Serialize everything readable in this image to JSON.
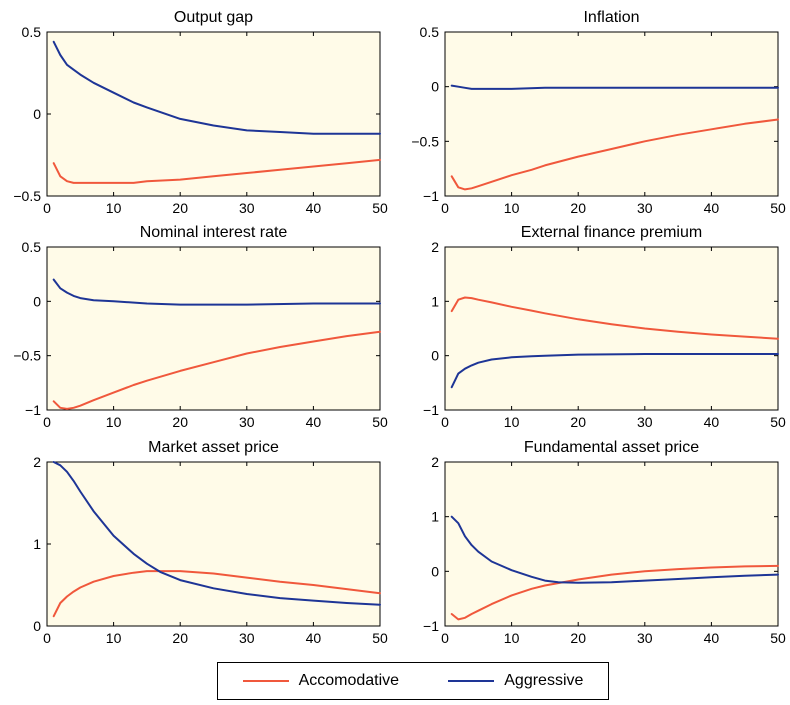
{
  "colors": {
    "accomodative": "#f0583c",
    "aggressive": "#1e3596",
    "axes_background": "#fffbe8"
  },
  "legend": {
    "placement": "bottom-center",
    "items": [
      {
        "label": "Accomodative",
        "color": "#f0583c"
      },
      {
        "label": "Aggressive",
        "color": "#1e3596"
      }
    ]
  },
  "chart_data": [
    {
      "type": "line",
      "title": "Output gap",
      "xlabel": "",
      "ylabel": "",
      "xlim": [
        0,
        50
      ],
      "ylim": [
        -0.5,
        0.5
      ],
      "xticks": [
        0,
        10,
        20,
        30,
        40,
        50
      ],
      "xtick_labels": [
        "0",
        "10",
        "20",
        "30",
        "40",
        "50"
      ],
      "yticks": [
        -0.5,
        0,
        0.5
      ],
      "ytick_labels": [
        "−0.5",
        "0",
        "0.5"
      ],
      "series": [
        {
          "name": "Accomodative",
          "x": [
            1,
            2,
            3,
            4,
            5,
            7,
            10,
            13,
            15,
            20,
            25,
            30,
            35,
            40,
            45,
            50
          ],
          "y": [
            -0.3,
            -0.38,
            -0.41,
            -0.42,
            -0.42,
            -0.42,
            -0.42,
            -0.42,
            -0.41,
            -0.4,
            -0.38,
            -0.36,
            -0.34,
            -0.32,
            -0.3,
            -0.28
          ]
        },
        {
          "name": "Aggressive",
          "x": [
            1,
            2,
            3,
            4,
            5,
            7,
            10,
            13,
            15,
            20,
            25,
            30,
            35,
            40,
            45,
            50
          ],
          "y": [
            0.44,
            0.36,
            0.3,
            0.27,
            0.24,
            0.19,
            0.13,
            0.07,
            0.04,
            -0.03,
            -0.07,
            -0.1,
            -0.11,
            -0.12,
            -0.12,
            -0.12
          ]
        }
      ]
    },
    {
      "type": "line",
      "title": "Inflation",
      "xlabel": "",
      "ylabel": "",
      "xlim": [
        0,
        50
      ],
      "ylim": [
        -1,
        0.5
      ],
      "xticks": [
        0,
        10,
        20,
        30,
        40,
        50
      ],
      "xtick_labels": [
        "0",
        "10",
        "20",
        "30",
        "40",
        "50"
      ],
      "yticks": [
        -1,
        -0.5,
        0,
        0.5
      ],
      "ytick_labels": [
        "−1",
        "−0.5",
        "0",
        "0.5"
      ],
      "series": [
        {
          "name": "Accomodative",
          "x": [
            1,
            2,
            3,
            4,
            5,
            7,
            10,
            13,
            15,
            20,
            25,
            30,
            35,
            40,
            45,
            50
          ],
          "y": [
            -0.82,
            -0.92,
            -0.94,
            -0.93,
            -0.91,
            -0.87,
            -0.81,
            -0.76,
            -0.72,
            -0.64,
            -0.57,
            -0.5,
            -0.44,
            -0.39,
            -0.34,
            -0.3
          ]
        },
        {
          "name": "Aggressive",
          "x": [
            1,
            2,
            3,
            4,
            5,
            10,
            15,
            20,
            30,
            40,
            50
          ],
          "y": [
            0.01,
            0.0,
            -0.01,
            -0.02,
            -0.02,
            -0.02,
            -0.01,
            -0.01,
            -0.01,
            -0.01,
            -0.01
          ]
        }
      ]
    },
    {
      "type": "line",
      "title": "Nominal interest rate",
      "xlabel": "",
      "ylabel": "",
      "xlim": [
        0,
        50
      ],
      "ylim": [
        -1,
        0.5
      ],
      "xticks": [
        0,
        10,
        20,
        30,
        40,
        50
      ],
      "xtick_labels": [
        "0",
        "10",
        "20",
        "30",
        "40",
        "50"
      ],
      "yticks": [
        -1,
        -0.5,
        0,
        0.5
      ],
      "ytick_labels": [
        "−1",
        "−0.5",
        "0",
        "0.5"
      ],
      "series": [
        {
          "name": "Accomodative",
          "x": [
            1,
            2,
            3,
            4,
            5,
            7,
            10,
            13,
            15,
            20,
            25,
            30,
            35,
            40,
            45,
            50
          ],
          "y": [
            -0.92,
            -0.98,
            -0.99,
            -0.98,
            -0.96,
            -0.91,
            -0.84,
            -0.77,
            -0.73,
            -0.64,
            -0.56,
            -0.48,
            -0.42,
            -0.37,
            -0.32,
            -0.28
          ]
        },
        {
          "name": "Aggressive",
          "x": [
            1,
            2,
            3,
            4,
            5,
            7,
            10,
            15,
            20,
            30,
            40,
            50
          ],
          "y": [
            0.2,
            0.12,
            0.08,
            0.05,
            0.03,
            0.01,
            0.0,
            -0.02,
            -0.03,
            -0.03,
            -0.02,
            -0.02
          ]
        }
      ]
    },
    {
      "type": "line",
      "title": "External finance premium",
      "xlabel": "",
      "ylabel": "",
      "xlim": [
        0,
        50
      ],
      "ylim": [
        -1,
        2
      ],
      "xticks": [
        0,
        10,
        20,
        30,
        40,
        50
      ],
      "xtick_labels": [
        "0",
        "10",
        "20",
        "30",
        "40",
        "50"
      ],
      "yticks": [
        -1,
        0,
        1,
        2
      ],
      "ytick_labels": [
        "−1",
        "0",
        "1",
        "2"
      ],
      "series": [
        {
          "name": "Accomodative",
          "x": [
            1,
            2,
            3,
            4,
            5,
            7,
            10,
            13,
            15,
            20,
            25,
            30,
            35,
            40,
            45,
            50
          ],
          "y": [
            0.82,
            1.03,
            1.07,
            1.06,
            1.03,
            0.98,
            0.9,
            0.83,
            0.78,
            0.67,
            0.58,
            0.5,
            0.44,
            0.39,
            0.35,
            0.31
          ]
        },
        {
          "name": "Aggressive",
          "x": [
            1,
            2,
            3,
            4,
            5,
            7,
            10,
            13,
            15,
            20,
            30,
            40,
            50
          ],
          "y": [
            -0.58,
            -0.33,
            -0.24,
            -0.18,
            -0.13,
            -0.07,
            -0.03,
            -0.01,
            0.0,
            0.02,
            0.03,
            0.03,
            0.03
          ]
        }
      ]
    },
    {
      "type": "line",
      "title": "Market asset price",
      "xlabel": "",
      "ylabel": "",
      "xlim": [
        0,
        50
      ],
      "ylim": [
        0,
        2
      ],
      "xticks": [
        0,
        10,
        20,
        30,
        40,
        50
      ],
      "xtick_labels": [
        "0",
        "10",
        "20",
        "30",
        "40",
        "50"
      ],
      "yticks": [
        0,
        1,
        2
      ],
      "ytick_labels": [
        "0",
        "1",
        "2"
      ],
      "series": [
        {
          "name": "Accomodative",
          "x": [
            1,
            2,
            3,
            4,
            5,
            7,
            10,
            13,
            15,
            17,
            20,
            25,
            30,
            35,
            40,
            45,
            50
          ],
          "y": [
            0.12,
            0.28,
            0.36,
            0.42,
            0.47,
            0.54,
            0.61,
            0.65,
            0.67,
            0.67,
            0.67,
            0.64,
            0.59,
            0.54,
            0.5,
            0.45,
            0.4
          ]
        },
        {
          "name": "Aggressive",
          "x": [
            1,
            2,
            3,
            4,
            5,
            7,
            10,
            13,
            15,
            17,
            20,
            25,
            30,
            35,
            40,
            45,
            50
          ],
          "y": [
            2.0,
            1.96,
            1.88,
            1.77,
            1.64,
            1.4,
            1.1,
            0.88,
            0.76,
            0.66,
            0.56,
            0.46,
            0.39,
            0.34,
            0.31,
            0.28,
            0.26
          ]
        }
      ]
    },
    {
      "type": "line",
      "title": "Fundamental asset price",
      "xlabel": "",
      "ylabel": "",
      "xlim": [
        0,
        50
      ],
      "ylim": [
        -1,
        2
      ],
      "xticks": [
        0,
        10,
        20,
        30,
        40,
        50
      ],
      "xtick_labels": [
        "0",
        "10",
        "20",
        "30",
        "40",
        "50"
      ],
      "yticks": [
        -1,
        0,
        1,
        2
      ],
      "ytick_labels": [
        "−1",
        "0",
        "1",
        "2"
      ],
      "series": [
        {
          "name": "Accomodative",
          "x": [
            1,
            2,
            3,
            4,
            5,
            7,
            10,
            13,
            15,
            20,
            25,
            30,
            35,
            40,
            45,
            50
          ],
          "y": [
            -0.78,
            -0.88,
            -0.85,
            -0.78,
            -0.72,
            -0.6,
            -0.44,
            -0.32,
            -0.26,
            -0.15,
            -0.06,
            0.0,
            0.04,
            0.07,
            0.09,
            0.1
          ]
        },
        {
          "name": "Aggressive",
          "x": [
            1,
            2,
            3,
            4,
            5,
            7,
            10,
            13,
            15,
            17,
            20,
            25,
            30,
            35,
            40,
            45,
            50
          ],
          "y": [
            1.0,
            0.88,
            0.64,
            0.48,
            0.36,
            0.18,
            0.02,
            -0.1,
            -0.17,
            -0.2,
            -0.21,
            -0.2,
            -0.17,
            -0.14,
            -0.11,
            -0.08,
            -0.06
          ]
        }
      ]
    }
  ]
}
